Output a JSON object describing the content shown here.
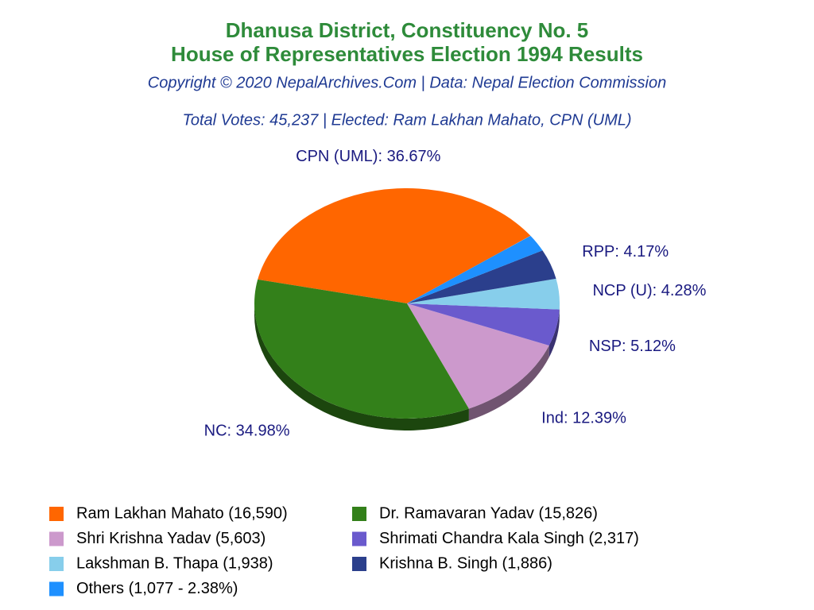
{
  "chart_data": {
    "type": "pie",
    "title": "Dhanusa District, Constituency No. 5",
    "subtitle": "House of Representatives Election 1994 Results",
    "credit": "Copyright © 2020 NepalArchives.Com | Data: Nepal Election Commission",
    "summary": "Total Votes: 45,237 | Elected: Ram Lakhan Mahato, CPN (UML)",
    "categories": [
      "Ram Lakhan Mahato (16,590)",
      "Dr. Ramavaran Yadav (15,826)",
      "Shri Krishna Yadav (5,603)",
      "Shrimati Chandra Kala Singh (2,317)",
      "Lakshman B. Thapa (1,938)",
      "Krishna B. Singh (1,886)",
      "Others (1,077 - 2.38%)"
    ],
    "values": [
      36.67,
      34.98,
      12.39,
      5.12,
      4.28,
      4.17,
      2.38
    ],
    "value_labels": [
      "CPN (UML): 36.67%",
      "NC: 34.98%",
      "Ind: 12.39%",
      "NSP: 5.12%",
      "NCP (U): 4.28%",
      "RPP: 4.17%",
      null
    ],
    "colors": [
      "#ff6600",
      "#33801a",
      "#cc99cc",
      "#6a5acd",
      "#87ceeb",
      "#2b3f8c",
      "#1e90ff"
    ]
  }
}
